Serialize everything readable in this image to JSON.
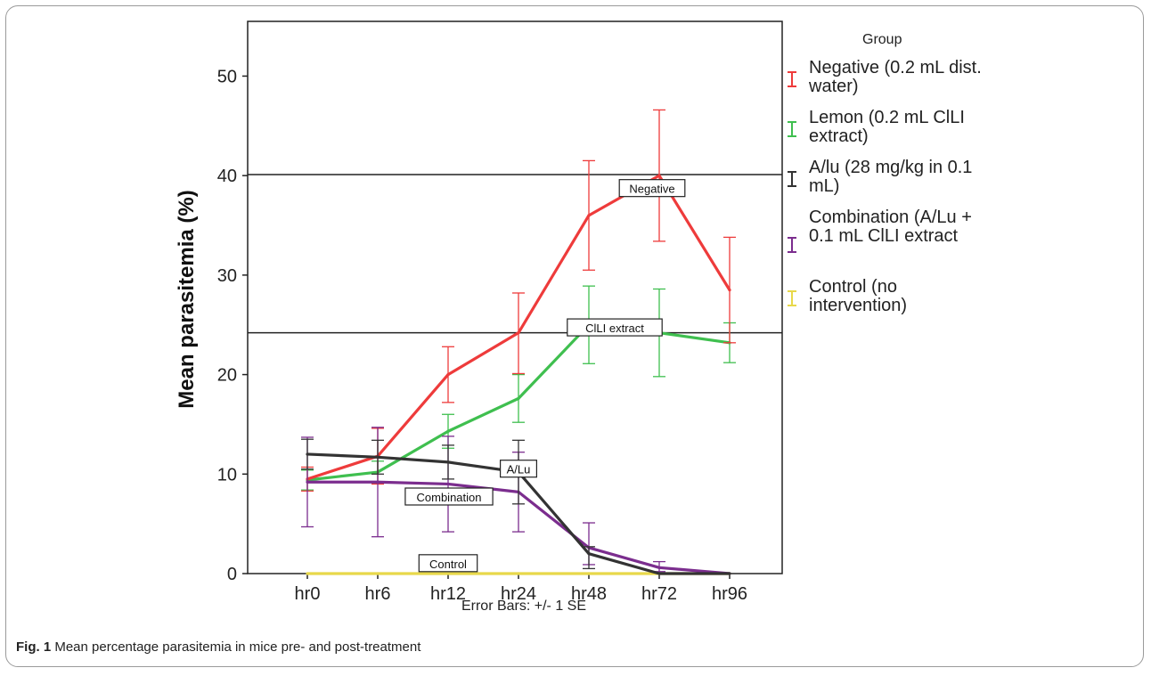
{
  "caption": {
    "label": "Fig. 1",
    "text": "Mean percentage parasitemia in mice pre- and post-treatment"
  },
  "chart_data": {
    "type": "line",
    "title": "",
    "xlabel": "Error Bars: +/- 1 SE",
    "ylabel": "Mean parasitemia (%)",
    "ylim": [
      0,
      55.5
    ],
    "yticks": [
      "0",
      "10",
      "20",
      "30",
      "40",
      "50"
    ],
    "categories": [
      "hr0",
      "hr6",
      "hr12",
      "hr24",
      "hr48",
      "hr72",
      "hr96"
    ],
    "grid": false,
    "legend_title": "Group",
    "legend_position": "right",
    "series": [
      {
        "name": "Negative (0.2 mL dist. water)",
        "color": "#ee3b3b",
        "values": [
          9.5,
          11.8,
          20.0,
          24.2,
          36.0,
          40.0,
          28.5
        ],
        "err_low": [
          8.3,
          9.0,
          17.2,
          20.1,
          30.5,
          33.4,
          23.2
        ],
        "err_high": [
          10.7,
          14.6,
          22.8,
          28.2,
          41.5,
          46.6,
          33.8
        ]
      },
      {
        "name": "Lemon (0.2 mL ClLI extract)",
        "color": "#3fbf4f",
        "values": [
          9.4,
          10.2,
          14.3,
          17.6,
          25.0,
          24.2,
          23.2
        ],
        "err_low": [
          8.4,
          9.1,
          12.6,
          15.2,
          21.1,
          19.8,
          21.2
        ],
        "err_high": [
          10.4,
          11.3,
          16.0,
          20.0,
          28.9,
          28.6,
          25.2
        ]
      },
      {
        "name": "A/lu (28 mg/kg in 0.1 mL)",
        "color": "#333333",
        "values": [
          12.0,
          11.7,
          11.2,
          10.2,
          2.0,
          0.0,
          0.0
        ],
        "err_low": [
          10.5,
          10.0,
          9.5,
          7.0,
          0.5,
          0.0,
          0.0
        ],
        "err_high": [
          13.5,
          13.4,
          12.9,
          13.4,
          2.7,
          0.0,
          0.0
        ]
      },
      {
        "name": "Combination (A/Lu + 0.1 mL ClLI extract",
        "color": "#7b2d8e",
        "values": [
          9.2,
          9.2,
          9.0,
          8.2,
          2.6,
          0.6,
          0.0
        ],
        "err_low": [
          4.7,
          3.7,
          4.2,
          4.2,
          0.9,
          0.2,
          0.0
        ],
        "err_high": [
          13.7,
          14.7,
          13.8,
          12.2,
          5.1,
          1.2,
          0.0
        ]
      },
      {
        "name": "Control (no intervention)",
        "color": "#e8d84a",
        "values": [
          0,
          0,
          0,
          0,
          0,
          0,
          0
        ],
        "err_low": [
          0,
          0,
          0,
          0,
          0,
          0,
          0
        ],
        "err_high": [
          0,
          0,
          0,
          0,
          0,
          0,
          0
        ]
      }
    ],
    "reference_lines": [
      40.1,
      24.2
    ],
    "annotations": [
      {
        "text": "Negative",
        "at_x": "hr72",
        "at_y": 38.7
      },
      {
        "text": "ClLI extract",
        "at_x": "hr48",
        "at_y": 24.7
      },
      {
        "text": "A/Lu",
        "at_x": "hr24",
        "at_y": 10.5
      },
      {
        "text": "Combination",
        "at_x": "hr12",
        "at_y": 7.7
      },
      {
        "text": "Control",
        "at_x": "hr12",
        "at_y": 1.0
      }
    ]
  }
}
